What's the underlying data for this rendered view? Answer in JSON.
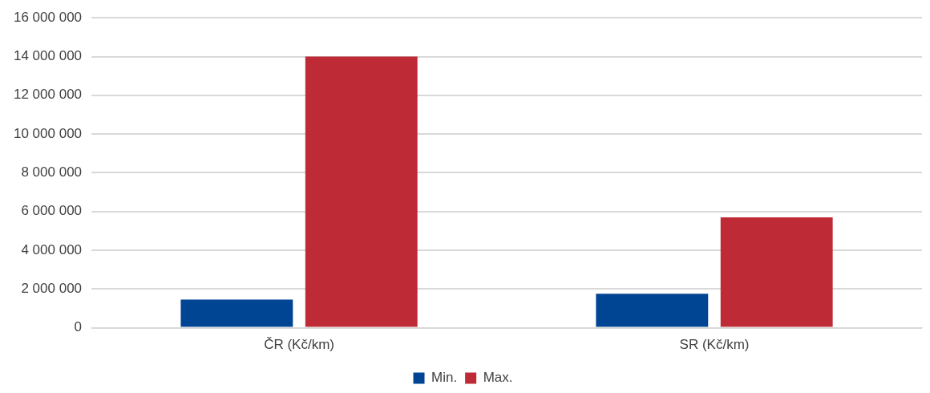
{
  "chart_data": {
    "type": "bar",
    "categories": [
      "ČR (Kč/km)",
      "SR (Kč/km)"
    ],
    "series": [
      {
        "name": "Min.",
        "color": "#004494",
        "values": [
          1450000,
          1750000
        ]
      },
      {
        "name": "Max.",
        "color": "#be2a35",
        "values": [
          14000000,
          5700000
        ]
      }
    ],
    "ylim": [
      0,
      16000000
    ],
    "yticks": [
      0,
      2000000,
      4000000,
      6000000,
      8000000,
      10000000,
      12000000,
      14000000,
      16000000
    ],
    "grid": "y",
    "legend": "bottom"
  }
}
